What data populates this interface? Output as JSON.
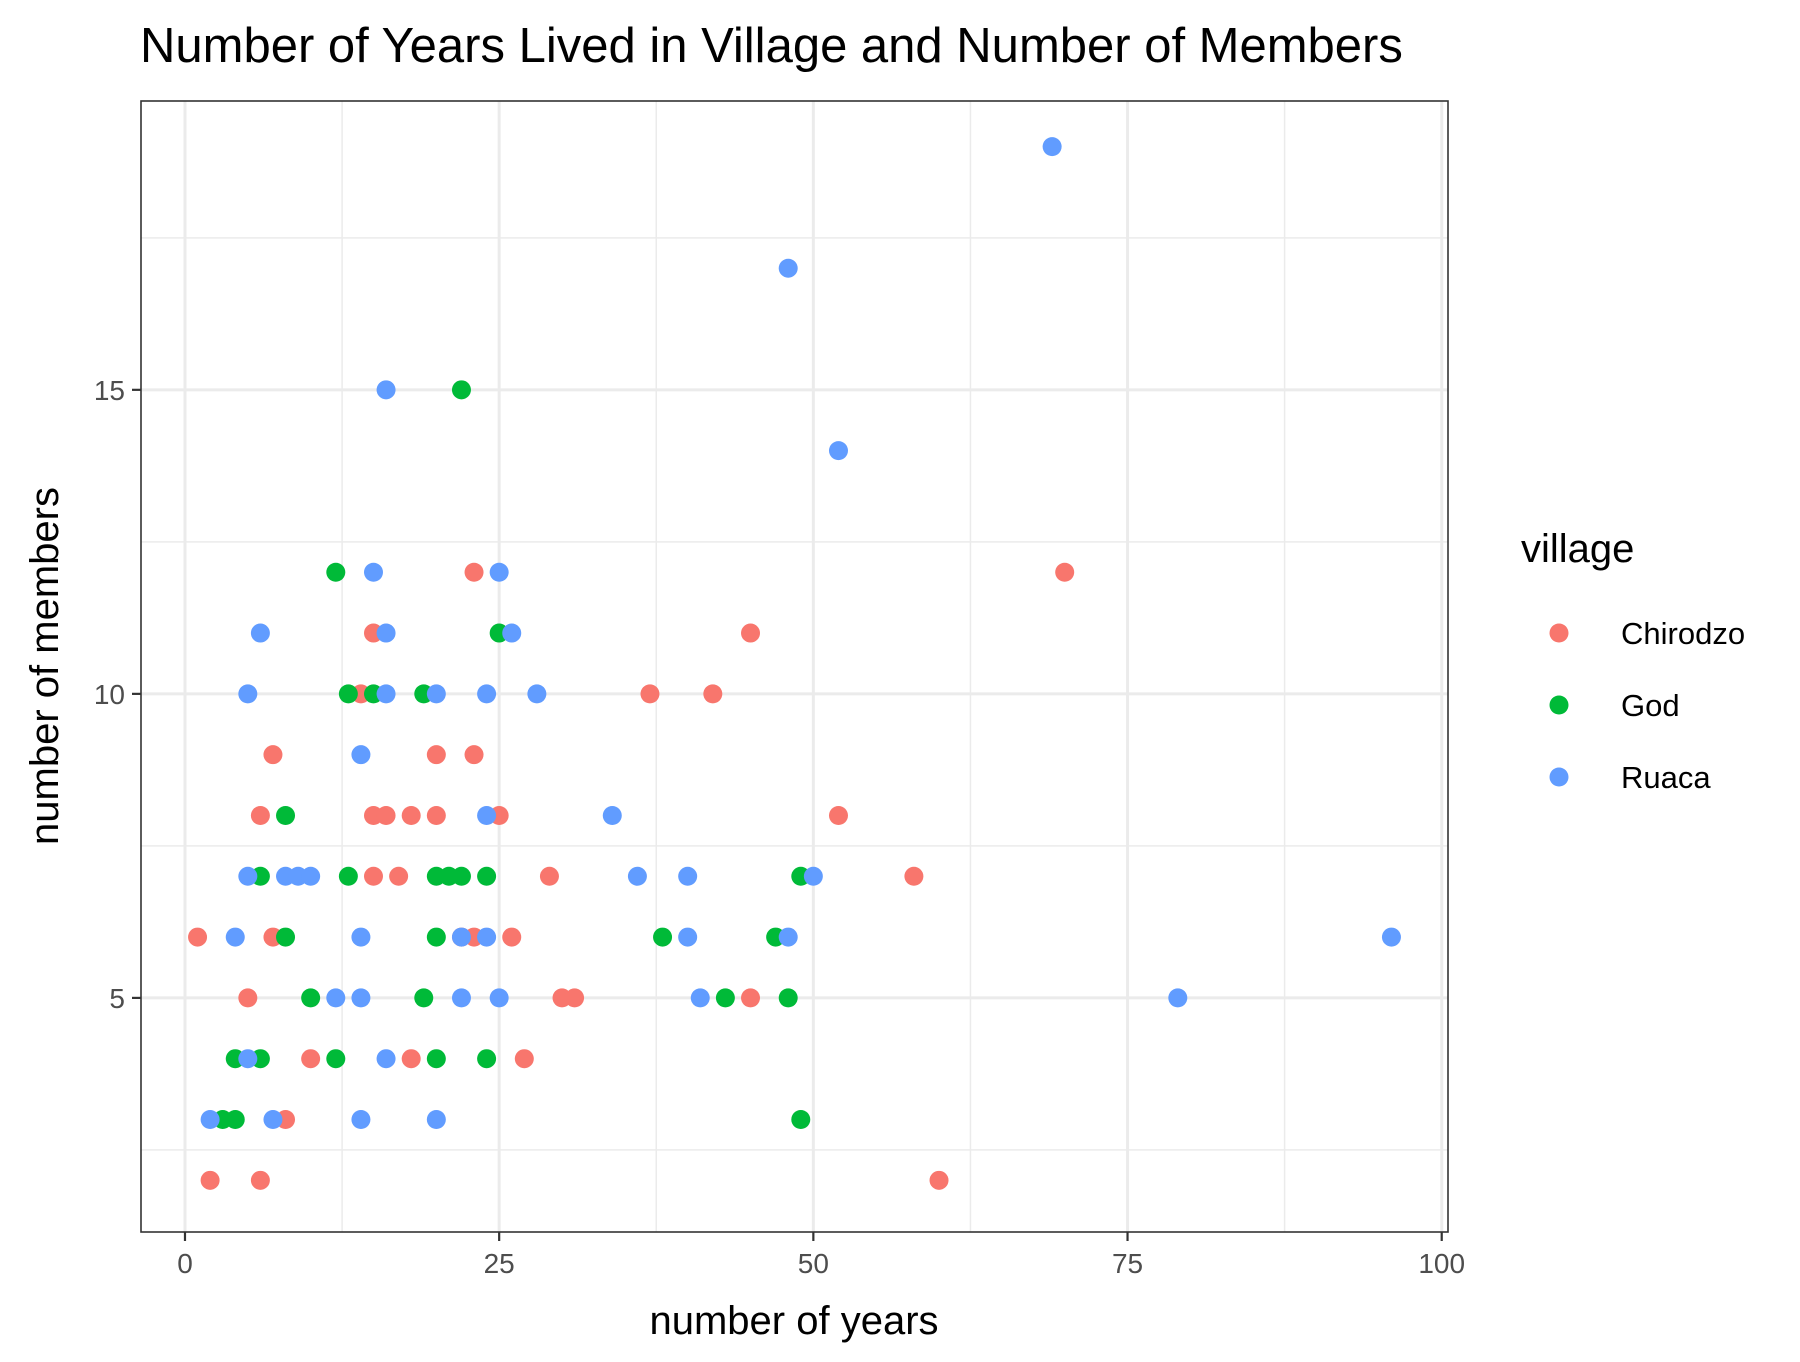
{
  "chart_data": {
    "type": "scatter",
    "title": "Number of Years Lived in Village and Number of Members",
    "xlabel": "number of years",
    "ylabel": "number of members",
    "xlim": [
      -3.5,
      100.5
    ],
    "ylim": [
      1.15,
      19.75
    ],
    "x_ticks": [
      0,
      25,
      50,
      75,
      100
    ],
    "y_ticks": [
      5,
      10,
      15
    ],
    "grid": true,
    "legend": {
      "title": "village",
      "position": "right"
    },
    "series": [
      {
        "name": "Chirodzo",
        "color": "#F8766D",
        "points": [
          [
            1,
            6
          ],
          [
            2,
            2
          ],
          [
            5,
            5
          ],
          [
            6,
            8
          ],
          [
            6,
            2
          ],
          [
            7,
            9
          ],
          [
            7,
            6
          ],
          [
            8,
            3
          ],
          [
            10,
            4
          ],
          [
            14,
            10
          ],
          [
            15,
            11
          ],
          [
            15,
            8
          ],
          [
            15,
            7
          ],
          [
            16,
            8
          ],
          [
            17,
            7
          ],
          [
            18,
            8
          ],
          [
            18,
            4
          ],
          [
            20,
            9
          ],
          [
            20,
            8
          ],
          [
            22,
            6
          ],
          [
            23,
            12
          ],
          [
            23,
            9
          ],
          [
            23,
            6
          ],
          [
            25,
            8
          ],
          [
            26,
            6
          ],
          [
            27,
            4
          ],
          [
            29,
            7
          ],
          [
            30,
            5
          ],
          [
            31,
            5
          ],
          [
            37,
            10
          ],
          [
            42,
            10
          ],
          [
            45,
            11
          ],
          [
            45,
            5
          ],
          [
            52,
            8
          ],
          [
            58,
            7
          ],
          [
            60,
            2
          ],
          [
            70,
            12
          ]
        ]
      },
      {
        "name": "God",
        "color": "#00BA38",
        "points": [
          [
            3,
            3
          ],
          [
            4,
            4
          ],
          [
            4,
            3
          ],
          [
            6,
            7
          ],
          [
            6,
            4
          ],
          [
            8,
            8
          ],
          [
            8,
            6
          ],
          [
            10,
            5
          ],
          [
            12,
            12
          ],
          [
            12,
            4
          ],
          [
            13,
            10
          ],
          [
            13,
            7
          ],
          [
            15,
            10
          ],
          [
            19,
            10
          ],
          [
            19,
            5
          ],
          [
            20,
            7
          ],
          [
            20,
            6
          ],
          [
            20,
            4
          ],
          [
            21,
            7
          ],
          [
            22,
            15
          ],
          [
            22,
            7
          ],
          [
            24,
            7
          ],
          [
            24,
            4
          ],
          [
            25,
            11
          ],
          [
            38,
            6
          ],
          [
            43,
            5
          ],
          [
            47,
            6
          ],
          [
            48,
            5
          ],
          [
            49,
            7
          ],
          [
            49,
            3
          ]
        ]
      },
      {
        "name": "Ruaca",
        "color": "#619CFF",
        "points": [
          [
            2,
            3
          ],
          [
            4,
            6
          ],
          [
            5,
            10
          ],
          [
            5,
            7
          ],
          [
            5,
            4
          ],
          [
            6,
            11
          ],
          [
            7,
            3
          ],
          [
            8,
            7
          ],
          [
            9,
            7
          ],
          [
            10,
            7
          ],
          [
            12,
            5
          ],
          [
            14,
            9
          ],
          [
            14,
            6
          ],
          [
            14,
            5
          ],
          [
            14,
            3
          ],
          [
            15,
            12
          ],
          [
            16,
            15
          ],
          [
            16,
            11
          ],
          [
            16,
            10
          ],
          [
            16,
            4
          ],
          [
            20,
            10
          ],
          [
            20,
            3
          ],
          [
            22,
            6
          ],
          [
            22,
            5
          ],
          [
            24,
            10
          ],
          [
            24,
            8
          ],
          [
            24,
            6
          ],
          [
            25,
            12
          ],
          [
            25,
            5
          ],
          [
            26,
            11
          ],
          [
            28,
            10
          ],
          [
            34,
            8
          ],
          [
            36,
            7
          ],
          [
            40,
            7
          ],
          [
            40,
            6
          ],
          [
            41,
            5
          ],
          [
            48,
            17
          ],
          [
            48,
            6
          ],
          [
            50,
            7
          ],
          [
            52,
            14
          ],
          [
            69,
            19
          ],
          [
            79,
            5
          ],
          [
            96,
            6
          ]
        ]
      }
    ]
  }
}
